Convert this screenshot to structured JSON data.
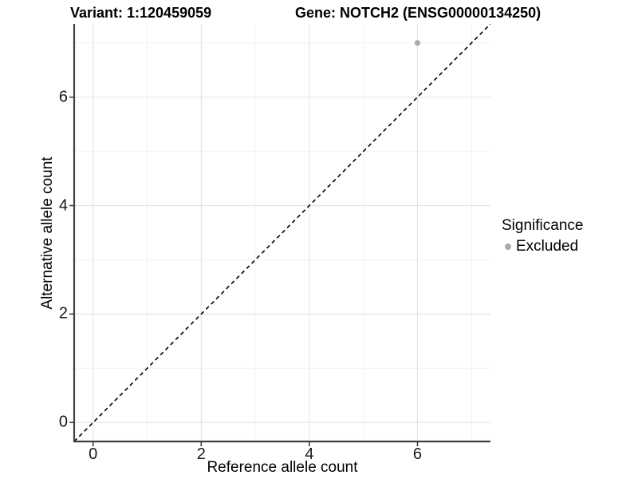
{
  "header": {
    "variant_title": "Variant: 1:120459059",
    "gene_title": "Gene: NOTCH2 (ENSG00000134250)"
  },
  "axes": {
    "x_title": "Reference allele count",
    "y_title": "Alternative allele count"
  },
  "legend": {
    "title": "Significance",
    "items": [
      {
        "label": "Excluded",
        "color": "#acacac"
      }
    ]
  },
  "chart_data": {
    "type": "scatter",
    "title": "Variant: 1:120459059   Gene: NOTCH2 (ENSG00000134250)",
    "xlabel": "Reference allele count",
    "ylabel": "Alternative allele count",
    "xlim": [
      -0.35,
      7.35
    ],
    "ylim": [
      -0.35,
      7.35
    ],
    "x_ticks": [
      0,
      2,
      4,
      6
    ],
    "y_ticks": [
      0,
      2,
      4,
      6
    ],
    "x_minor_ticks": [
      1,
      3,
      5,
      7
    ],
    "y_minor_ticks": [
      1,
      3,
      5,
      7
    ],
    "grid": "major+minor",
    "legend_position": "right",
    "series": [
      {
        "name": "Excluded",
        "color": "#acacac",
        "points": [
          {
            "x": 6,
            "y": 7
          }
        ]
      }
    ],
    "reference_line": {
      "slope": 1,
      "intercept": 0,
      "linetype": "dashed",
      "color": "#000000"
    }
  },
  "style": {
    "grid_major_color": "#e4e4e4",
    "grid_minor_color": "#f2f2f2",
    "axis_line_color": "#404040",
    "tick_color": "#404040"
  }
}
